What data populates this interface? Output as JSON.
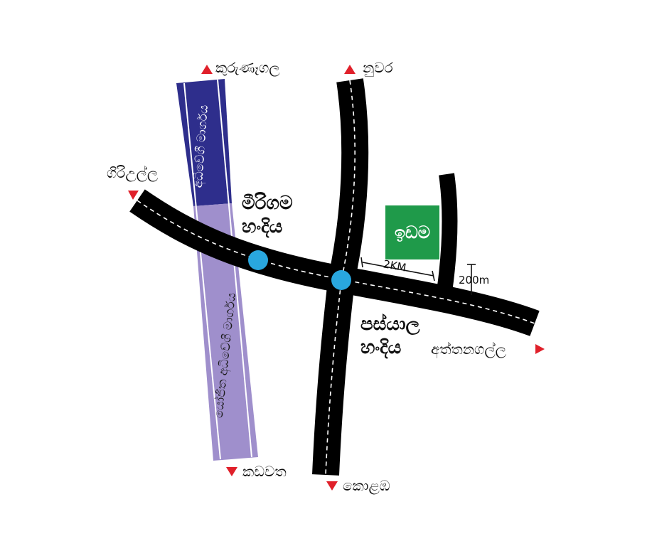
{
  "places": {
    "kurunegala": "කුරුණෑගල",
    "nuwara": "නුවර",
    "giriulla": "ගිරිඋල්ල",
    "aththanagalla": "අත්තනගල්ල",
    "kadawatha": "කඩවත",
    "colombo": "කොළඹ"
  },
  "junctions": {
    "mirigama_line1": "මීරිගම",
    "mirigama_line2": "හංදිය",
    "pasyala_line1": "පස්යාල",
    "pasyala_line2": "හංදිය"
  },
  "highways": {
    "expressway": "අධිවේගී මාර්ගය",
    "proposed_expressway": "යෝජිත අධිවේගී මාර්ගය"
  },
  "land_label": "ඉඩම",
  "distances": {
    "to_land": "2KM",
    "side_road": "200m"
  },
  "colors": {
    "road": "#000000",
    "expressway": "#2e2e8c",
    "proposed_expressway": "#9f8fcc",
    "junction_marker": "#29a7df",
    "land": "#1f9a4a",
    "direction_arrow": "#e0202a"
  }
}
